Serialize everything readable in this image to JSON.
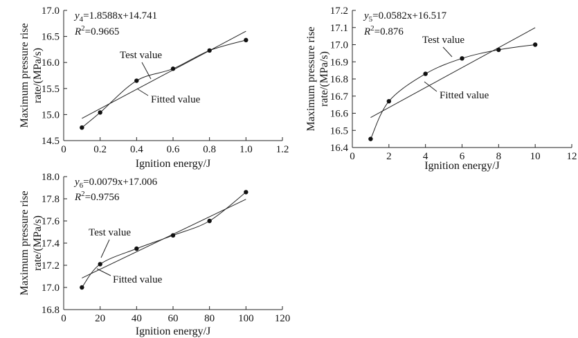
{
  "chart_data": [
    {
      "type": "scatter",
      "xlabel": "Ignition energy/J",
      "ylabel_lines": [
        "Maximum pressure rise",
        "rate/(MPa/s)"
      ],
      "xlim": [
        0,
        1.2
      ],
      "ylim": [
        14.5,
        17.0
      ],
      "xticks": [
        "0",
        "0.2",
        "0.4",
        "0.6",
        "0.8",
        "1.0",
        "1.2"
      ],
      "yticks": [
        "14.5",
        "15.0",
        "15.5",
        "16.0",
        "16.5",
        "17.0"
      ],
      "x": [
        0.1,
        0.2,
        0.4,
        0.6,
        0.8,
        1.0
      ],
      "y": [
        14.75,
        15.04,
        15.65,
        15.88,
        16.23,
        16.43
      ],
      "fit": {
        "slope": 1.8588,
        "intercept": 14.741,
        "xrange": [
          0.1,
          1.0
        ]
      },
      "equation": {
        "var": "y",
        "sub": "4",
        "text": "=1.8588x+14.741"
      },
      "r2": {
        "base": "R",
        "sup": "2",
        "text": "=0.9665"
      },
      "test_label": "Test value",
      "fitted_label": "Fitted value"
    },
    {
      "type": "scatter",
      "xlabel": "Ignition energy/J",
      "ylabel_lines": [
        "Maximum pressure rise",
        "rate/(MPa/s)"
      ],
      "xlim": [
        0,
        12
      ],
      "ylim": [
        16.4,
        17.2
      ],
      "xticks": [
        "0",
        "2",
        "4",
        "6",
        "8",
        "10",
        "12"
      ],
      "yticks": [
        "16.4",
        "16.5",
        "16.6",
        "16.7",
        "16.8",
        "16.9",
        "17.0",
        "17.1",
        "17.2"
      ],
      "x": [
        1,
        2,
        4,
        6,
        8,
        10
      ],
      "y": [
        16.45,
        16.67,
        16.83,
        16.92,
        16.97,
        17.0
      ],
      "fit": {
        "slope": 0.0582,
        "intercept": 16.517,
        "xrange": [
          1,
          10
        ]
      },
      "equation": {
        "var": "y",
        "sub": "5",
        "text": "=0.0582x+16.517"
      },
      "r2": {
        "base": "R",
        "sup": "2",
        "text": "=0.876"
      },
      "test_label": "Test value",
      "fitted_label": "Fitted value"
    },
    {
      "type": "scatter",
      "xlabel": "Ignition energy/J",
      "ylabel_lines": [
        "Maximum pressure rise",
        "rate/(MPa/s)"
      ],
      "xlim": [
        0,
        120
      ],
      "ylim": [
        16.8,
        18.0
      ],
      "xticks": [
        "0",
        "20",
        "40",
        "60",
        "80",
        "100",
        "120"
      ],
      "yticks": [
        "16.8",
        "17.0",
        "17.2",
        "17.4",
        "17.6",
        "17.8",
        "18.0"
      ],
      "x": [
        10,
        20,
        40,
        60,
        80,
        100
      ],
      "y": [
        17.0,
        17.21,
        17.35,
        17.47,
        17.6,
        17.86
      ],
      "fit": {
        "slope": 0.0079,
        "intercept": 17.006,
        "xrange": [
          10,
          100
        ]
      },
      "equation": {
        "var": "y",
        "sub": "6",
        "text": "=0.0079x+17.006"
      },
      "r2": {
        "base": "R",
        "sup": "2",
        "text": "=0.9756"
      },
      "test_label": "Test value",
      "fitted_label": "Fitted value"
    }
  ]
}
